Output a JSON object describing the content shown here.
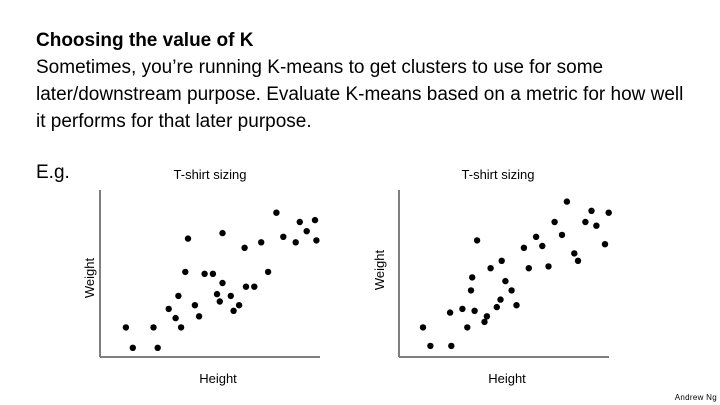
{
  "slide": {
    "title": "Choosing the value of K",
    "body": "Sometimes, you’re running K-means to get clusters to use for some later/downstream purpose. Evaluate K-means based on a metric for how well it performs for that later purpose.",
    "eg": "E.g.",
    "attribution": "Andrew Ng"
  },
  "colors": {
    "points": "#000000",
    "axes": "#7f7f7f",
    "text": "#000000"
  },
  "chart_data": [
    {
      "type": "scatter",
      "title": "T-shirt sizing",
      "xlabel": "Height",
      "ylabel": "Weight",
      "grid": false,
      "legend": "none",
      "points": [
        [
          1.3,
          1.6
        ],
        [
          1.8,
          0.5
        ],
        [
          3.3,
          1.6
        ],
        [
          3.6,
          0.5
        ],
        [
          4.4,
          2.6
        ],
        [
          4.9,
          2.1
        ],
        [
          5.1,
          3.3
        ],
        [
          5.3,
          1.6
        ],
        [
          5.6,
          4.6
        ],
        [
          5.8,
          6.4
        ],
        [
          6.3,
          2.8
        ],
        [
          6.6,
          2.2
        ],
        [
          7.0,
          4.5
        ],
        [
          7.6,
          4.5
        ],
        [
          7.9,
          3.4
        ],
        [
          8.1,
          3.0
        ],
        [
          8.3,
          4.0
        ],
        [
          8.3,
          6.7
        ],
        [
          8.9,
          3.3
        ],
        [
          9.1,
          2.5
        ],
        [
          9.5,
          2.8
        ],
        [
          9.9,
          5.9
        ],
        [
          10.0,
          3.8
        ],
        [
          10.6,
          3.8
        ],
        [
          11.1,
          6.2
        ],
        [
          11.6,
          4.6
        ],
        [
          12.2,
          7.8
        ],
        [
          12.7,
          6.5
        ],
        [
          13.6,
          6.2
        ],
        [
          13.9,
          7.3
        ],
        [
          14.4,
          6.8
        ],
        [
          15.0,
          7.4
        ],
        [
          15.1,
          6.3
        ]
      ]
    },
    {
      "type": "scatter",
      "title": "T-shirt sizing",
      "xlabel": "Height",
      "ylabel": "Weight",
      "grid": false,
      "legend": "none",
      "points": [
        [
          1.3,
          1.6
        ],
        [
          1.9,
          0.6
        ],
        [
          3.5,
          2.4
        ],
        [
          3.6,
          0.6
        ],
        [
          4.5,
          2.6
        ],
        [
          4.9,
          1.6
        ],
        [
          5.2,
          3.6
        ],
        [
          5.3,
          4.3
        ],
        [
          5.5,
          2.5
        ],
        [
          5.7,
          6.3
        ],
        [
          6.3,
          1.9
        ],
        [
          6.5,
          2.2
        ],
        [
          6.8,
          4.8
        ],
        [
          7.3,
          2.7
        ],
        [
          7.6,
          3.1
        ],
        [
          7.7,
          5.2
        ],
        [
          8.0,
          4.1
        ],
        [
          8.5,
          3.6
        ],
        [
          8.9,
          2.8
        ],
        [
          9.5,
          5.9
        ],
        [
          9.9,
          4.8
        ],
        [
          10.5,
          6.5
        ],
        [
          11.0,
          6.0
        ],
        [
          11.5,
          4.9
        ],
        [
          12.0,
          7.3
        ],
        [
          12.6,
          6.6
        ],
        [
          13.0,
          8.4
        ],
        [
          13.6,
          5.6
        ],
        [
          13.9,
          5.2
        ],
        [
          14.5,
          7.3
        ],
        [
          15.0,
          7.9
        ],
        [
          15.4,
          7.1
        ],
        [
          16.1,
          6.1
        ],
        [
          16.4,
          7.8
        ]
      ]
    }
  ]
}
